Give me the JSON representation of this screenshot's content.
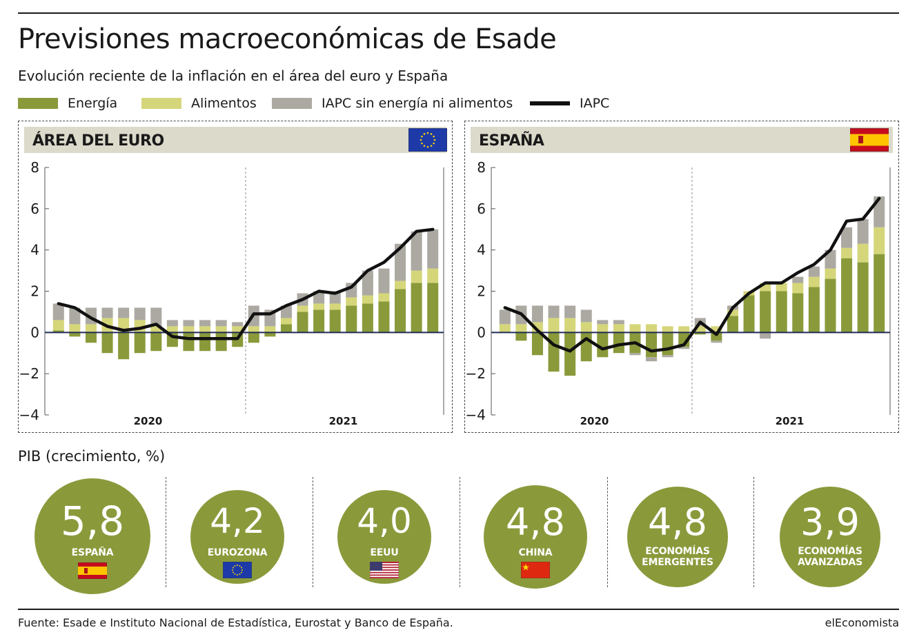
{
  "title": "Previsiones macroeconómicas de Esade",
  "subtitle": "Evolución reciente de la inflación en el área del euro y España",
  "legend": [
    {
      "label": "Energía",
      "color": "#8a9a3b",
      "kind": "bar"
    },
    {
      "label": "Alimentos",
      "color": "#d5d67a",
      "kind": "bar"
    },
    {
      "label": "IAPC sin energía ni alimentos",
      "color": "#aca9a2",
      "kind": "bar"
    },
    {
      "label": "IAPC",
      "color": "#111111",
      "kind": "line"
    }
  ],
  "colors": {
    "energy": "#8a9a3b",
    "food": "#d5d67a",
    "core": "#aca9a2",
    "line": "#111111",
    "zero": "#1f2a55",
    "panel_header": "#dcdacb"
  },
  "chart_data": [
    {
      "type": "bar",
      "title": "ÁREA DEL EURO",
      "flag_icon": "eu-flag-icon",
      "ylim": [
        -4,
        8
      ],
      "yticks": [
        "8",
        "6",
        "4",
        "2",
        "0",
        "−2",
        "−4"
      ],
      "year_labels": [
        "2020",
        "2021"
      ],
      "grid": false,
      "series": [
        {
          "name": "Energía",
          "values": [
            0.1,
            -0.2,
            -0.5,
            -1.0,
            -1.3,
            -1.0,
            -0.9,
            -0.7,
            -0.9,
            -0.9,
            -0.9,
            -0.7,
            -0.5,
            -0.2,
            0.4,
            1.0,
            1.1,
            1.1,
            1.3,
            1.4,
            1.5,
            2.1,
            2.4,
            2.4
          ]
        },
        {
          "name": "Alimentos",
          "values": [
            0.5,
            0.4,
            0.4,
            0.7,
            0.7,
            0.6,
            0.3,
            0.3,
            0.3,
            0.3,
            0.3,
            0.3,
            0.3,
            0.3,
            0.3,
            0.3,
            0.3,
            0.3,
            0.4,
            0.4,
            0.4,
            0.4,
            0.6,
            0.7
          ]
        },
        {
          "name": "IAPC sin energía ni alimentos",
          "values": [
            0.8,
            0.8,
            0.8,
            0.5,
            0.5,
            0.6,
            0.9,
            0.3,
            0.3,
            0.3,
            0.3,
            0.2,
            1.0,
            0.8,
            0.6,
            0.6,
            0.6,
            0.6,
            0.7,
            1.2,
            1.2,
            1.8,
            1.9,
            1.9
          ]
        },
        {
          "name": "IAPC",
          "values": [
            1.4,
            1.2,
            0.7,
            0.3,
            0.1,
            0.2,
            0.4,
            -0.2,
            -0.3,
            -0.3,
            -0.3,
            -0.3,
            0.9,
            0.9,
            1.3,
            1.6,
            2.0,
            1.9,
            2.2,
            3.0,
            3.4,
            4.1,
            4.9,
            5.0
          ]
        }
      ]
    },
    {
      "type": "bar",
      "title": "ESPAÑA",
      "flag_icon": "spain-flag-icon",
      "ylim": [
        -4,
        8
      ],
      "yticks": [
        "8",
        "6",
        "4",
        "2",
        "0",
        "−2",
        "−4"
      ],
      "year_labels": [
        "2020",
        "2021"
      ],
      "grid": false,
      "series": [
        {
          "name": "Energía",
          "values": [
            0.0,
            -0.4,
            -1.1,
            -1.9,
            -2.1,
            -1.4,
            -1.2,
            -1.0,
            -1.0,
            -1.2,
            -1.1,
            -0.7,
            -0.1,
            -0.4,
            0.8,
            1.8,
            2.0,
            2.0,
            1.9,
            2.2,
            2.6,
            3.6,
            3.4,
            3.8
          ]
        },
        {
          "name": "Alimentos",
          "values": [
            0.4,
            0.4,
            0.5,
            0.7,
            0.7,
            0.5,
            0.4,
            0.4,
            0.4,
            0.4,
            0.3,
            0.3,
            0.3,
            0.3,
            0.3,
            0.2,
            0.4,
            0.4,
            0.5,
            0.5,
            0.5,
            0.5,
            0.9,
            1.3
          ]
        },
        {
          "name": "IAPC sin energía ni alimentos",
          "values": [
            0.7,
            0.9,
            0.8,
            0.6,
            0.6,
            0.6,
            0.2,
            0.2,
            -0.1,
            -0.2,
            -0.1,
            -0.1,
            0.4,
            -0.1,
            0.2,
            0.0,
            -0.3,
            0.0,
            0.3,
            0.5,
            0.9,
            1.0,
            1.2,
            1.5
          ]
        },
        {
          "name": "IAPC",
          "values": [
            1.2,
            0.9,
            0.1,
            -0.6,
            -0.9,
            -0.3,
            -0.8,
            -0.6,
            -0.5,
            -0.9,
            -0.8,
            -0.6,
            0.5,
            -0.1,
            1.2,
            1.9,
            2.4,
            2.4,
            2.9,
            3.3,
            4.0,
            5.4,
            5.5,
            6.5
          ]
        }
      ]
    }
  ],
  "pib": {
    "label": "PIB (crecimiento, %)",
    "items": [
      {
        "value": "5,8",
        "name": "ESPAÑA",
        "flag": "spain-flag-icon"
      },
      {
        "value": "4,2",
        "name": "EUROZONA",
        "flag": "eu-flag-icon"
      },
      {
        "value": "4,0",
        "name": "EEUU",
        "flag": "usa-flag-icon"
      },
      {
        "value": "4,8",
        "name": "CHINA",
        "flag": "china-flag-icon"
      },
      {
        "value": "4,8",
        "name": "ECONOMÍAS\nEMERGENTES",
        "flag": ""
      },
      {
        "value": "3,9",
        "name": "ECONOMÍAS\nAVANZADAS",
        "flag": ""
      }
    ]
  },
  "source": "Fuente: Esade e Instituto Nacional de Estadística, Eurostat y Banco de España.",
  "brand": "elEconomista"
}
